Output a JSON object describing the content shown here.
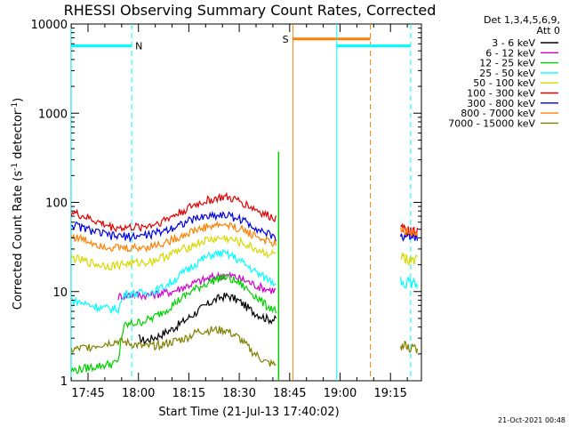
{
  "chart_data": {
    "type": "line",
    "title": "RHESSI Observing Summary Count Rates, Corrected",
    "xlabel": "Start Time (21-Jul-13 17:40:02)",
    "ylabel": "Corrected Count Rate (s⁻¹ detector⁻¹)",
    "ylabel_parts": {
      "base": "Corrected Count Rate (s",
      "sup1": "-1",
      "mid": " detector",
      "sup2": "-1",
      "end": ")"
    },
    "yscale": "log",
    "ylim": [
      1,
      10000
    ],
    "xlim_minutes": [
      -0.03,
      104.2
    ],
    "x_ticks": [
      {
        "label": "17:45",
        "minutes": 5
      },
      {
        "label": "18:00",
        "minutes": 20
      },
      {
        "label": "18:15",
        "minutes": 35
      },
      {
        "label": "18:30",
        "minutes": 50
      },
      {
        "label": "18:45",
        "minutes": 65
      },
      {
        "label": "19:00",
        "minutes": 80
      },
      {
        "label": "19:15",
        "minutes": 95
      }
    ],
    "y_ticks": [
      {
        "label": "1",
        "value": 1
      },
      {
        "label": "10",
        "value": 10
      },
      {
        "label": "100",
        "value": 100
      },
      {
        "label": "1000",
        "value": 1000
      },
      {
        "label": "10000",
        "value": 10000
      }
    ],
    "legend_header": [
      "Det 1,3,4,5,6,9,",
      "Att 0"
    ],
    "legend_position": "right",
    "series": [
      {
        "name": "3 - 6 keV",
        "color": "#000000",
        "points": [
          [
            20,
            3
          ],
          [
            22,
            2.8
          ],
          [
            26,
            3.2
          ],
          [
            30,
            3.8
          ],
          [
            34,
            4.8
          ],
          [
            38,
            6.2
          ],
          [
            42,
            7.8
          ],
          [
            45,
            8.8
          ],
          [
            47,
            8.9
          ],
          [
            50,
            7.8
          ],
          [
            54,
            6.0
          ],
          [
            58,
            5.0
          ],
          [
            61,
            4.8
          ]
        ]
      },
      {
        "name": "6 - 12 keV",
        "color": "#d000d0",
        "points": [
          [
            14,
            8.8
          ],
          [
            18,
            9.3
          ],
          [
            22,
            9.1
          ],
          [
            26,
            9.5
          ],
          [
            30,
            10.0
          ],
          [
            34,
            11.5
          ],
          [
            38,
            13
          ],
          [
            42,
            14.5
          ],
          [
            45,
            15.2
          ],
          [
            48,
            15
          ],
          [
            52,
            13.2
          ],
          [
            56,
            11.3
          ],
          [
            59,
            10.5
          ],
          [
            61,
            10.3
          ]
        ]
      },
      {
        "name": "12 - 25 keV",
        "color": "#00d000",
        "points": [
          [
            0,
            1.3
          ],
          [
            14,
            1.6
          ],
          [
            14.8,
            3
          ],
          [
            16,
            4.2
          ],
          [
            20,
            4.5
          ],
          [
            24,
            5
          ],
          [
            28,
            6.2
          ],
          [
            32,
            8
          ],
          [
            36,
            10.2
          ],
          [
            40,
            12.3
          ],
          [
            44,
            14.2
          ],
          [
            46,
            14.5
          ],
          [
            50,
            12.5
          ],
          [
            54,
            9.5
          ],
          [
            58,
            7.0
          ],
          [
            61,
            6.2
          ]
        ]
      },
      {
        "name": "25 - 50 keV",
        "color": "#00ffff",
        "points": [
          [
            0,
            8.2
          ],
          [
            3,
            7.5
          ],
          [
            6,
            7.0
          ],
          [
            10,
            6.5
          ],
          [
            14,
            6.4
          ],
          [
            16,
            9.5
          ],
          [
            22,
            9.6
          ],
          [
            26,
            10.5
          ],
          [
            30,
            13
          ],
          [
            34,
            17
          ],
          [
            38,
            22
          ],
          [
            42,
            26
          ],
          [
            45,
            27
          ],
          [
            48,
            25
          ],
          [
            52,
            20
          ],
          [
            56,
            15.5
          ],
          [
            60,
            13
          ],
          [
            61,
            12.5
          ]
        ]
      },
      {
        "name": "50 - 100 keV",
        "color": "#d8d800",
        "points": [
          [
            0,
            24
          ],
          [
            4,
            22
          ],
          [
            8,
            20
          ],
          [
            12,
            19.5
          ],
          [
            16,
            20.5
          ],
          [
            20,
            21
          ],
          [
            24,
            22
          ],
          [
            28,
            25
          ],
          [
            32,
            28.5
          ],
          [
            36,
            33
          ],
          [
            40,
            37.5
          ],
          [
            44,
            39.5
          ],
          [
            46,
            39.5
          ],
          [
            50,
            36
          ],
          [
            54,
            31
          ],
          [
            58,
            27
          ],
          [
            61,
            26
          ]
        ]
      },
      {
        "name": "100 - 300 keV",
        "color": "#e00000",
        "points": [
          [
            0,
            78
          ],
          [
            4,
            69
          ],
          [
            8,
            60
          ],
          [
            12,
            53
          ],
          [
            16,
            52
          ],
          [
            20,
            53
          ],
          [
            24,
            56
          ],
          [
            28,
            64
          ],
          [
            32,
            76
          ],
          [
            36,
            91
          ],
          [
            40,
            104
          ],
          [
            44,
            113
          ],
          [
            46,
            114
          ],
          [
            50,
            104
          ],
          [
            54,
            87
          ],
          [
            58,
            72
          ],
          [
            61,
            66
          ]
        ]
      },
      {
        "name": "300 - 800 keV",
        "color": "#0000e0",
        "points": [
          [
            0,
            57
          ],
          [
            4,
            51
          ],
          [
            8,
            46
          ],
          [
            12,
            42
          ],
          [
            16,
            41.5
          ],
          [
            20,
            42
          ],
          [
            24,
            44
          ],
          [
            28,
            49
          ],
          [
            32,
            56
          ],
          [
            36,
            64
          ],
          [
            40,
            70
          ],
          [
            44,
            72.5
          ],
          [
            46,
            72.5
          ],
          [
            50,
            66
          ],
          [
            54,
            55
          ],
          [
            58,
            45
          ],
          [
            61,
            40
          ]
        ]
      },
      {
        "name": "800 - 7000 keV",
        "color": "#ff8000",
        "points": [
          [
            0,
            42
          ],
          [
            4,
            38
          ],
          [
            8,
            34
          ],
          [
            12,
            31.5
          ],
          [
            16,
            30.5
          ],
          [
            20,
            31
          ],
          [
            24,
            32.5
          ],
          [
            28,
            35.5
          ],
          [
            32,
            41
          ],
          [
            36,
            47.5
          ],
          [
            40,
            53
          ],
          [
            44,
            56
          ],
          [
            46,
            56
          ],
          [
            50,
            51
          ],
          [
            54,
            44
          ],
          [
            58,
            37
          ],
          [
            61,
            34
          ]
        ]
      },
      {
        "name": "7000 - 15000 keV",
        "color": "#808000",
        "points": [
          [
            0,
            2.2
          ],
          [
            14,
            2.8
          ],
          [
            22,
            2.4
          ],
          [
            28,
            2.6
          ],
          [
            34,
            3.0
          ],
          [
            38,
            3.6
          ],
          [
            42,
            3.7
          ],
          [
            46,
            3.7
          ],
          [
            50,
            3.0
          ],
          [
            54,
            2.1
          ],
          [
            58,
            1.6
          ],
          [
            61,
            1.5
          ]
        ]
      }
    ],
    "post_gap_series": [
      {
        "name": "100 - 300 keV",
        "color": "#e00000",
        "x": [
          98,
          103
        ],
        "values": [
          50,
          46
        ]
      },
      {
        "name": "300 - 800 keV",
        "color": "#0000e0",
        "x": [
          98,
          103
        ],
        "values": [
          43,
          40
        ]
      },
      {
        "name": "800 - 7000 keV",
        "color": "#ff8000",
        "x": [
          98,
          103
        ],
        "values": [
          47,
          44
        ]
      },
      {
        "name": "50 - 100 keV",
        "color": "#d8d800",
        "x": [
          98,
          103
        ],
        "values": [
          24,
          22
        ]
      },
      {
        "name": "25 - 50 keV",
        "color": "#00ffff",
        "x": [
          98,
          103
        ],
        "values": [
          13,
          12
        ]
      },
      {
        "name": "7000 - 15000 keV",
        "color": "#808000",
        "x": [
          98,
          103
        ],
        "values": [
          2.5,
          2.3
        ]
      }
    ],
    "annotations": [
      {
        "label": "N",
        "color": "#00ffff",
        "level": 5700,
        "start_minutes": 0,
        "end_minutes": 18,
        "solid_lines_minutes": [
          0
        ],
        "dashed_lines_minutes": [
          18
        ]
      },
      {
        "label": "S",
        "color": "#ff8000",
        "level": 6800,
        "start_minutes": 66,
        "end_minutes": 89,
        "solid_lines_minutes": [
          66
        ],
        "dashed_lines_minutes": [
          89
        ]
      },
      {
        "label": "",
        "color": "#00ffff",
        "level": 5700,
        "start_minutes": 79,
        "end_minutes": 101,
        "solid_lines_minutes": [
          79
        ],
        "dashed_lines_minutes": [
          101
        ]
      }
    ],
    "spike": {
      "minutes": 61.7,
      "peak": 370,
      "color": "#00d000"
    },
    "grid": false
  },
  "footer": {
    "timestamp": "21-Oct-2021 00:48"
  }
}
